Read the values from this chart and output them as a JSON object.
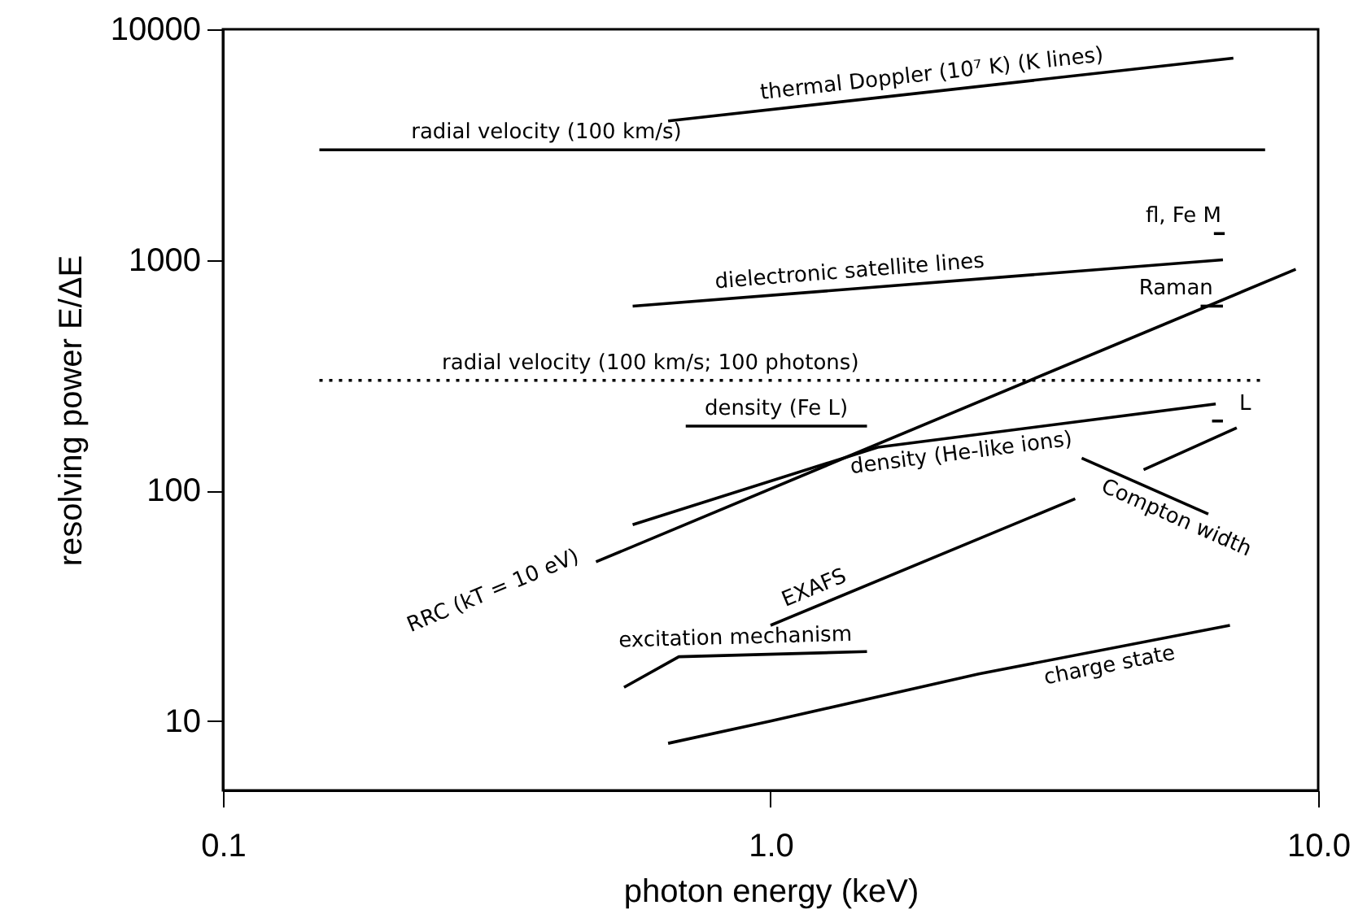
{
  "chart_data": {
    "type": "line",
    "xlabel": "photon energy (keV)",
    "ylabel": "resolving power E/ΔE",
    "log": "xy",
    "grid": false,
    "xlim": [
      0.1,
      10
    ],
    "ylim": [
      5,
      10000
    ],
    "xticks": [
      {
        "value": 0.1,
        "label": "0.1"
      },
      {
        "value": 1,
        "label": "1.0"
      },
      {
        "value": 10,
        "label": "10.0"
      }
    ],
    "yticks": [
      10,
      100,
      1000,
      10000
    ],
    "series": [
      {
        "name": "thermal Doppler (10⁷ K) (K lines)",
        "color": "#000000",
        "x": [
          0.65,
          7
        ],
        "values": [
          4000,
          7500
        ]
      },
      {
        "name": "radial velocity (100 km/s)",
        "color": "#000000",
        "x": [
          0.15,
          8
        ],
        "values": [
          3000,
          3000
        ]
      },
      {
        "name": "fl, Fe M",
        "color": "#000000",
        "x": [
          6.45,
          6.75
        ],
        "values": [
          1300,
          1300
        ]
      },
      {
        "name": "dielectronic satellite lines",
        "color": "#000000",
        "x": [
          0.56,
          6.7
        ],
        "values": [
          630,
          1000
        ]
      },
      {
        "name": "Raman",
        "color": "#000000",
        "x": [
          6.1,
          6.7
        ],
        "values": [
          630,
          630
        ]
      },
      {
        "name": "radial velocity (100 km/s; 100 photons)",
        "color": "#000000",
        "line_style": "dotted",
        "x": [
          0.15,
          8
        ],
        "values": [
          300,
          300
        ]
      },
      {
        "name": "density (Fe L)",
        "color": "#000000",
        "x": [
          0.7,
          1.5
        ],
        "values": [
          190,
          190
        ]
      },
      {
        "name": "L",
        "color": "#000000",
        "x": [
          6.4,
          6.7
        ],
        "values": [
          200,
          200
        ]
      },
      {
        "name": "density (He-like ions)",
        "color": "#000000",
        "x": [
          0.56,
          1.57,
          6.5
        ],
        "values": [
          71,
          154,
          237
        ]
      },
      {
        "name": "RRC (kT = 10 eV)",
        "color": "#000000",
        "x": [
          0.48,
          9.1
        ],
        "values": [
          49,
          910
        ]
      },
      {
        "name": "Compton width",
        "color": "#000000",
        "x": [
          3.7,
          6.3
        ],
        "values": [
          138,
          79
        ]
      },
      {
        "name": "EXAFS",
        "color": "#000000",
        "x": [
          1.0,
          3.6,
          4.2,
          4.8,
          7.1
        ],
        "values": [
          26,
          92,
          null,
          123,
          187
        ]
      },
      {
        "name": "excitation mechanism",
        "color": "#000000",
        "x": [
          0.54,
          0.68,
          1.5
        ],
        "values": [
          14,
          19,
          20
        ]
      },
      {
        "name": "charge state",
        "color": "#000000",
        "x": [
          0.65,
          1.0,
          2.4,
          6.9
        ],
        "values": [
          8,
          10,
          16,
          26
        ]
      }
    ]
  }
}
